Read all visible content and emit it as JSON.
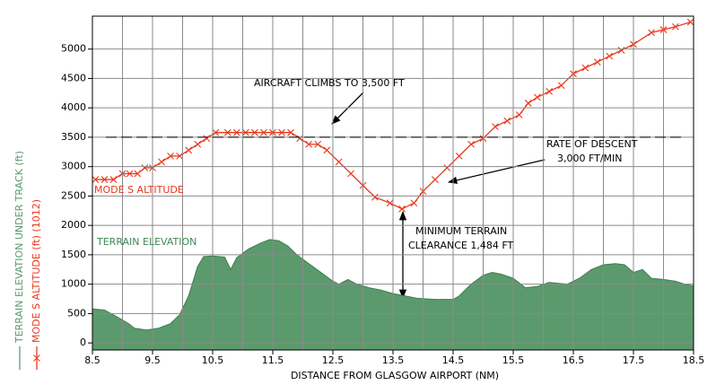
{
  "chart_data": {
    "type": "line",
    "x_label": "DISTANCE FROM GLASGOW AIRPORT (NM)",
    "xlim": [
      8.5,
      18.5
    ],
    "ylim": [
      -120,
      5560
    ],
    "xticks": [
      8.5,
      9.5,
      10.5,
      11.5,
      12.5,
      13.5,
      14.5,
      15.5,
      16.5,
      17.5,
      18.5
    ],
    "x_minor_grid": [
      9,
      10,
      11,
      12,
      13,
      14,
      15,
      16,
      17,
      18
    ],
    "yticks": [
      0,
      500,
      1000,
      1500,
      2000,
      2500,
      3000,
      3500,
      4000,
      4500,
      5000
    ],
    "grid": true,
    "reference_line": 3500,
    "series": [
      {
        "name": "TERRAIN ELEVATION UNDER TRACK (ft)",
        "color": "#5b9a6c",
        "style": "area",
        "x": [
          8.5,
          8.7,
          8.9,
          9.1,
          9.2,
          9.4,
          9.6,
          9.8,
          9.95,
          10.1,
          10.25,
          10.35,
          10.5,
          10.7,
          10.8,
          10.9,
          11.1,
          11.3,
          11.45,
          11.6,
          11.75,
          11.9,
          12.1,
          12.3,
          12.5,
          12.6,
          12.75,
          12.9,
          13.1,
          13.3,
          13.5,
          13.7,
          13.9,
          14.2,
          14.5,
          14.6,
          14.8,
          15.0,
          15.15,
          15.3,
          15.5,
          15.7,
          15.9,
          16.1,
          16.2,
          16.4,
          16.6,
          16.8,
          17.0,
          17.2,
          17.35,
          17.5,
          17.65,
          17.8,
          18.0,
          18.2,
          18.35,
          18.5
        ],
        "values": [
          580,
          560,
          450,
          330,
          250,
          220,
          250,
          330,
          480,
          800,
          1300,
          1470,
          1480,
          1460,
          1250,
          1450,
          1600,
          1700,
          1760,
          1740,
          1650,
          1500,
          1350,
          1200,
          1050,
          1000,
          1080,
          1000,
          940,
          900,
          840,
          800,
          760,
          740,
          740,
          800,
          1000,
          1150,
          1200,
          1170,
          1100,
          940,
          960,
          1030,
          1020,
          1000,
          1100,
          1250,
          1330,
          1350,
          1330,
          1200,
          1250,
          1100,
          1080,
          1050,
          1000,
          970
        ]
      },
      {
        "name": "MODE S ALTITUDE (ft) (1012)",
        "color": "#e8391e",
        "style": "line-x",
        "x": [
          8.55,
          8.7,
          8.85,
          9.0,
          9.12,
          9.25,
          9.37,
          9.5,
          9.65,
          9.8,
          9.95,
          10.1,
          10.25,
          10.4,
          10.55,
          10.75,
          10.9,
          11.05,
          11.2,
          11.35,
          11.5,
          11.65,
          11.8,
          11.95,
          12.1,
          12.25,
          12.4,
          12.6,
          12.8,
          13.0,
          13.2,
          13.45,
          13.65,
          13.85,
          14.0,
          14.2,
          14.4,
          14.6,
          14.8,
          15.0,
          15.2,
          15.4,
          15.6,
          15.75,
          15.9,
          16.1,
          16.3,
          16.5,
          16.7,
          16.9,
          17.1,
          17.3,
          17.5,
          17.8,
          18.0,
          18.2,
          18.45
        ],
        "values": [
          2780,
          2780,
          2780,
          2880,
          2880,
          2880,
          2980,
          2980,
          3080,
          3180,
          3180,
          3280,
          3380,
          3480,
          3580,
          3580,
          3580,
          3580,
          3580,
          3580,
          3580,
          3580,
          3580,
          3480,
          3380,
          3380,
          3280,
          3080,
          2880,
          2680,
          2480,
          2380,
          2280,
          2380,
          2580,
          2780,
          2980,
          3180,
          3380,
          3480,
          3680,
          3780,
          3880,
          4080,
          4180,
          4280,
          4380,
          4580,
          4680,
          4780,
          4880,
          4980,
          5080,
          5280,
          5330,
          5380,
          5460
        ]
      }
    ],
    "annotations": [
      "AIRCRAFT CLIMBS TO 3,500 FT",
      "RATE OF DESCENT",
      "3,000 FT/MIN",
      "MINIMUM TERRAIN",
      "CLEARANCE 1,484 FT",
      "MODE S ALTITUDE",
      "TERRAIN ELEVATION"
    ]
  }
}
